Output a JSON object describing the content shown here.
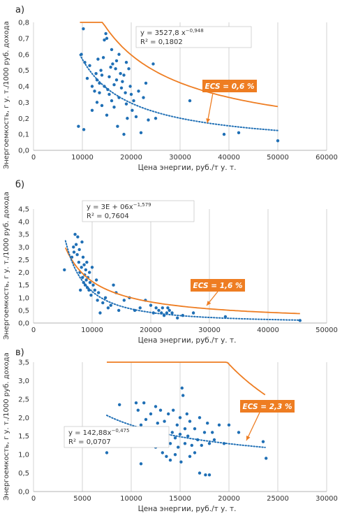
{
  "colors": {
    "scatter": "#1f6fb5",
    "power_fit": "#1f6fb5",
    "ecs_curve": "#ee7d22",
    "grid": "#c8c8c8",
    "axis_text": "#333333",
    "label_bg": "#ee7d22"
  },
  "chart_data": [
    {
      "type": "scatter",
      "panel_label": "а)",
      "xlabel": "Цена энергии, руб./т у. т.",
      "ylabel": "Энергоемкость, г у. т./1000 руб. дохода",
      "xlim": [
        0,
        60000
      ],
      "ylim": [
        0,
        0.8
      ],
      "xticks": [
        "0",
        "10000",
        "20000",
        "30000",
        "40000",
        "50000",
        "60000"
      ],
      "yticks": [
        "0,0",
        "0,1",
        "0,2",
        "0,3",
        "0,4",
        "0,5",
        "0,6",
        "0,7",
        "0,8"
      ],
      "grid": "vertical",
      "equation": "y = 3527,8 x",
      "equation_exp": "−0,948",
      "r2_text": "R² = 0,1802",
      "ecs_label": "ECS = 0,6 %",
      "trend": {
        "a": 3527.8,
        "b": -0.948,
        "x_from": 9500,
        "x_to": 50000
      },
      "ecs_curve": {
        "a": 2700,
        "b": -0.85,
        "x_from": 9500,
        "x_to": 50000
      },
      "points": [
        [
          9200,
          0.15
        ],
        [
          10200,
          0.76
        ],
        [
          10300,
          0.13
        ],
        [
          9800,
          0.6
        ],
        [
          10500,
          0.55
        ],
        [
          11000,
          0.45
        ],
        [
          11500,
          0.53
        ],
        [
          12000,
          0.25
        ],
        [
          12000,
          0.4
        ],
        [
          12500,
          0.37
        ],
        [
          12800,
          0.48
        ],
        [
          13000,
          0.3
        ],
        [
          13000,
          0.44
        ],
        [
          13200,
          0.57
        ],
        [
          13500,
          0.36
        ],
        [
          13500,
          0.42
        ],
        [
          13800,
          0.5
        ],
        [
          14000,
          0.47
        ],
        [
          14000,
          0.28
        ],
        [
          14300,
          0.58
        ],
        [
          14500,
          0.69
        ],
        [
          14500,
          0.4
        ],
        [
          14800,
          0.73
        ],
        [
          15000,
          0.7
        ],
        [
          15000,
          0.22
        ],
        [
          15200,
          0.38
        ],
        [
          15500,
          0.35
        ],
        [
          15500,
          0.46
        ],
        [
          15800,
          0.52
        ],
        [
          16000,
          0.63
        ],
        [
          16000,
          0.31
        ],
        [
          16200,
          0.54
        ],
        [
          16500,
          0.41
        ],
        [
          16500,
          0.27
        ],
        [
          16800,
          0.51
        ],
        [
          17000,
          0.56
        ],
        [
          17000,
          0.44
        ],
        [
          17200,
          0.15
        ],
        [
          17500,
          0.6
        ],
        [
          17500,
          0.33
        ],
        [
          17800,
          0.48
        ],
        [
          18000,
          0.39
        ],
        [
          18200,
          0.43
        ],
        [
          18500,
          0.47
        ],
        [
          18500,
          0.1
        ],
        [
          18800,
          0.36
        ],
        [
          19000,
          0.55
        ],
        [
          19000,
          0.29
        ],
        [
          19200,
          0.2
        ],
        [
          19500,
          0.51
        ],
        [
          19800,
          0.4
        ],
        [
          20000,
          0.35
        ],
        [
          20200,
          0.25
        ],
        [
          20500,
          0.31
        ],
        [
          21000,
          0.21
        ],
        [
          21500,
          0.37
        ],
        [
          22000,
          0.11
        ],
        [
          22500,
          0.33
        ],
        [
          23000,
          0.42
        ],
        [
          23500,
          0.19
        ],
        [
          24500,
          0.54
        ],
        [
          25000,
          0.2
        ],
        [
          32000,
          0.31
        ],
        [
          39000,
          0.1
        ],
        [
          42000,
          0.11
        ],
        [
          50000,
          0.06
        ]
      ]
    },
    {
      "type": "scatter",
      "panel_label": "б)",
      "xlabel": "Цена энергии, руб./т у. т.",
      "ylabel": "Энергоемкость, г у. т./1000 руб. дохода",
      "xlim": [
        0,
        55000
      ],
      "ylim": [
        0,
        4.5
      ],
      "xticks": [
        "0",
        "10000",
        "20000",
        "30000",
        "40000",
        "50000"
      ],
      "yticks": [
        "0,0",
        "0,5",
        "1,0",
        "1,5",
        "2,0",
        "2,5",
        "3,0",
        "3,5",
        "4,0",
        "4,5"
      ],
      "grid": "vertical",
      "equation": "y = 3E + 06x",
      "equation_exp": "−1,579",
      "r2_text": "R² = 0,7604",
      "ecs_label": "ECS = 1,6 %",
      "trend": {
        "a": 3000000,
        "b": -1.579,
        "x_from": 6000,
        "x_to": 50000
      },
      "ecs_curve": {
        "a": 15000,
        "b": -0.98,
        "x_from": 6000,
        "x_to": 50000
      },
      "points": [
        [
          5800,
          2.1
        ],
        [
          7200,
          2.6
        ],
        [
          7500,
          3.0
        ],
        [
          7600,
          2.8
        ],
        [
          7800,
          3.5
        ],
        [
          8000,
          3.1
        ],
        [
          8200,
          2.7
        ],
        [
          8300,
          3.4
        ],
        [
          8500,
          2.4
        ],
        [
          8600,
          2.9
        ],
        [
          8700,
          2.0
        ],
        [
          8800,
          1.3
        ],
        [
          9000,
          2.2
        ],
        [
          9100,
          3.2
        ],
        [
          9200,
          1.8
        ],
        [
          9300,
          2.6
        ],
        [
          9400,
          1.6
        ],
        [
          9500,
          2.3
        ],
        [
          9600,
          1.9
        ],
        [
          9700,
          1.5
        ],
        [
          9800,
          2.1
        ],
        [
          9900,
          1.7
        ],
        [
          10000,
          2.4
        ],
        [
          10100,
          1.4
        ],
        [
          10200,
          1.8
        ],
        [
          10400,
          1.3
        ],
        [
          10500,
          2.0
        ],
        [
          10600,
          1.6
        ],
        [
          10800,
          1.1
        ],
        [
          11000,
          2.2
        ],
        [
          11200,
          1.5
        ],
        [
          11500,
          1.3
        ],
        [
          11800,
          1.7
        ],
        [
          12000,
          0.9
        ],
        [
          12200,
          1.2
        ],
        [
          12500,
          0.4
        ],
        [
          13000,
          0.8
        ],
        [
          13500,
          1.0
        ],
        [
          14000,
          0.6
        ],
        [
          14500,
          0.7
        ],
        [
          15000,
          1.5
        ],
        [
          15500,
          1.2
        ],
        [
          16000,
          0.5
        ],
        [
          17000,
          0.9
        ],
        [
          18000,
          1.0
        ],
        [
          19000,
          0.5
        ],
        [
          20000,
          0.6
        ],
        [
          21000,
          0.9
        ],
        [
          22000,
          0.7
        ],
        [
          22500,
          0.4
        ],
        [
          23000,
          0.6
        ],
        [
          23500,
          0.5
        ],
        [
          24000,
          0.4
        ],
        [
          24200,
          0.6
        ],
        [
          24500,
          0.3
        ],
        [
          25000,
          0.4
        ],
        [
          25200,
          0.6
        ],
        [
          25500,
          0.5
        ],
        [
          26000,
          0.4
        ],
        [
          27000,
          0.2
        ],
        [
          28000,
          0.3
        ],
        [
          30000,
          0.4
        ],
        [
          36000,
          0.25
        ],
        [
          50000,
          0.1
        ]
      ]
    },
    {
      "type": "scatter",
      "panel_label": "в)",
      "xlabel": "Цена энергии, руб./т у. т.",
      "ylabel": "Энергоемкость, г у. т./1000 руб. дохода",
      "xlim": [
        0,
        30000
      ],
      "ylim": [
        0,
        3.5
      ],
      "xticks": [
        "0",
        "5000",
        "10000",
        "15000",
        "20000",
        "25000",
        "30000"
      ],
      "yticks": [
        "0,0",
        "0,5",
        "1,0",
        "1,5",
        "2,0",
        "2,5",
        "3,0",
        "3,5"
      ],
      "grid": "vertical",
      "equation": "y = 142,88x",
      "equation_exp": "−0,475",
      "r2_text": "R² = 0,0707",
      "ecs_label": "ECS = 2,3 %",
      "trend": {
        "a": 142.88,
        "b": -0.475,
        "x_from": 7500,
        "x_to": 23700
      },
      "ecs_curve": {
        "a": 32000000,
        "b": -1.62,
        "x_from": 7500,
        "x_to": 23700
      },
      "points": [
        [
          7500,
          1.05
        ],
        [
          8800,
          2.35
        ],
        [
          10500,
          2.4
        ],
        [
          10700,
          2.2
        ],
        [
          11000,
          1.8
        ],
        [
          11000,
          0.75
        ],
        [
          11300,
          2.4
        ],
        [
          11500,
          1.95
        ],
        [
          11700,
          1.7
        ],
        [
          12000,
          2.1
        ],
        [
          12000,
          1.55
        ],
        [
          12300,
          1.4
        ],
        [
          12500,
          2.3
        ],
        [
          12500,
          1.2
        ],
        [
          12700,
          1.85
        ],
        [
          13000,
          2.2
        ],
        [
          13000,
          1.6
        ],
        [
          13200,
          1.05
        ],
        [
          13400,
          1.9
        ],
        [
          13500,
          1.4
        ],
        [
          13600,
          0.95
        ],
        [
          13700,
          1.7
        ],
        [
          13800,
          2.1
        ],
        [
          14000,
          1.3
        ],
        [
          14000,
          0.85
        ],
        [
          14200,
          1.6
        ],
        [
          14300,
          2.2
        ],
        [
          14500,
          1.45
        ],
        [
          14500,
          1.0
        ],
        [
          14700,
          1.8
        ],
        [
          14800,
          1.2
        ],
        [
          15000,
          2.0
        ],
        [
          15000,
          1.55
        ],
        [
          15100,
          0.8
        ],
        [
          15200,
          2.8
        ],
        [
          15300,
          2.6
        ],
        [
          15500,
          1.7
        ],
        [
          15500,
          1.3
        ],
        [
          15700,
          2.1
        ],
        [
          15800,
          1.5
        ],
        [
          16000,
          1.9
        ],
        [
          16000,
          0.95
        ],
        [
          16200,
          1.25
        ],
        [
          16500,
          1.7
        ],
        [
          16500,
          1.05
        ],
        [
          16800,
          1.4
        ],
        [
          17000,
          2.0
        ],
        [
          17000,
          0.5
        ],
        [
          17200,
          1.25
        ],
        [
          17500,
          1.6
        ],
        [
          17600,
          0.45
        ],
        [
          17800,
          1.85
        ],
        [
          18000,
          1.3
        ],
        [
          18000,
          0.45
        ],
        [
          18300,
          1.6
        ],
        [
          18500,
          1.4
        ],
        [
          19000,
          1.8
        ],
        [
          19500,
          1.3
        ],
        [
          20000,
          1.8
        ],
        [
          21000,
          1.6
        ],
        [
          23500,
          1.35
        ],
        [
          23800,
          0.9
        ]
      ]
    }
  ]
}
